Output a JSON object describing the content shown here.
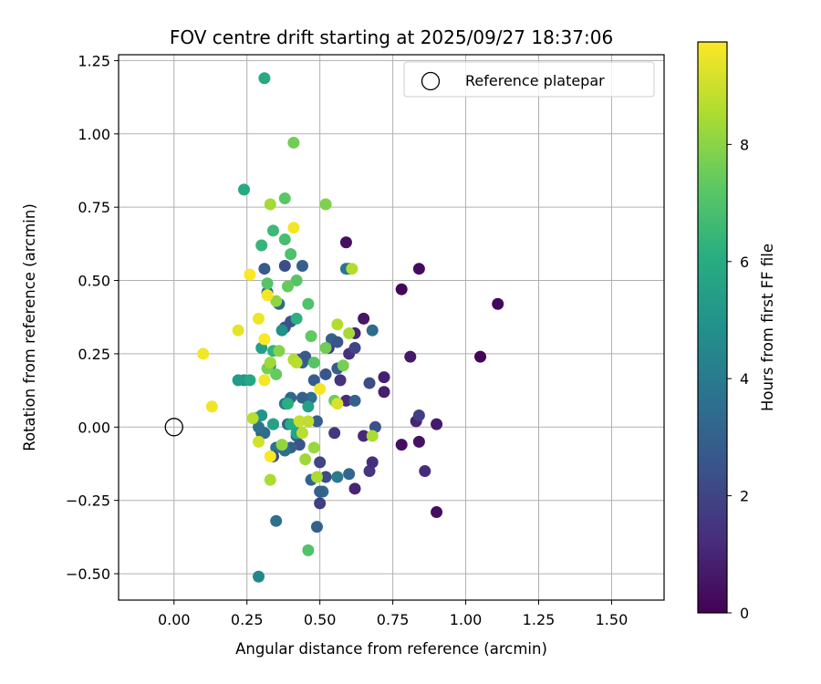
{
  "chart_data": {
    "type": "scatter",
    "title": "FOV centre drift starting at 2025/09/27 18:37:06",
    "xlabel": "Angular distance from reference (arcmin)",
    "ylabel": "Rotation from reference (arcmin)",
    "xlim": [
      -0.19,
      1.68
    ],
    "ylim": [
      -0.59,
      1.27
    ],
    "xticks": [
      0.0,
      0.25,
      0.5,
      0.75,
      1.0,
      1.25,
      1.5
    ],
    "xtick_labels": [
      "0.00",
      "0.25",
      "0.50",
      "0.75",
      "1.00",
      "1.25",
      "1.50"
    ],
    "yticks": [
      -0.5,
      -0.25,
      0.0,
      0.25,
      0.5,
      0.75,
      1.0,
      1.25
    ],
    "ytick_labels": [
      "−0.50",
      "−0.25",
      "0.00",
      "0.25",
      "0.50",
      "0.75",
      "1.00",
      "1.25"
    ],
    "grid": true,
    "legend": {
      "label": "Reference platepar",
      "position": "top-right"
    },
    "reference_point": {
      "x": 0.0,
      "y": 0.0
    },
    "colorbar": {
      "label": "Hours from first FF file",
      "colormap": "viridis",
      "range": [
        0,
        9.75
      ],
      "ticks": [
        0,
        2,
        4,
        6,
        8
      ],
      "tick_labels": [
        "0",
        "2",
        "4",
        "6",
        "8"
      ]
    },
    "series": [
      {
        "name": "FOV centre drift",
        "points": [
          [
            0.59,
            0.63,
            0.4
          ],
          [
            0.84,
            0.54,
            0.3
          ],
          [
            1.11,
            0.42,
            0.2
          ],
          [
            0.78,
            0.47,
            0.2
          ],
          [
            1.05,
            0.24,
            0.1
          ],
          [
            0.65,
            0.37,
            0.6
          ],
          [
            0.81,
            0.24,
            0.7
          ],
          [
            0.72,
            0.17,
            0.9
          ],
          [
            0.72,
            0.12,
            0.8
          ],
          [
            0.78,
            -0.06,
            0.4
          ],
          [
            0.84,
            -0.05,
            0.5
          ],
          [
            0.9,
            0.01,
            0.7
          ],
          [
            0.9,
            -0.29,
            0.4
          ],
          [
            0.86,
            -0.15,
            1.2
          ],
          [
            0.83,
            0.02,
            1.0
          ],
          [
            0.84,
            0.04,
            1.8
          ],
          [
            0.62,
            -0.21,
            1.0
          ],
          [
            0.67,
            -0.15,
            1.5
          ],
          [
            0.68,
            -0.12,
            1.3
          ],
          [
            0.65,
            -0.03,
            1.1
          ],
          [
            0.59,
            0.09,
            1.2
          ],
          [
            0.6,
            0.25,
            1.3
          ],
          [
            0.62,
            0.32,
            1.0
          ],
          [
            0.57,
            0.16,
            1.4
          ],
          [
            0.55,
            -0.02,
            1.5
          ],
          [
            0.53,
            0.27,
            1.6
          ],
          [
            0.67,
            0.15,
            2.2
          ],
          [
            0.69,
            0.0,
            2.4
          ],
          [
            0.62,
            0.27,
            2.0
          ],
          [
            0.56,
            0.2,
            2.8
          ],
          [
            0.5,
            -0.26,
            1.8
          ],
          [
            0.5,
            -0.12,
            2.0
          ],
          [
            0.49,
            -0.34,
            3.0
          ],
          [
            0.51,
            -0.22,
            3.5
          ],
          [
            0.52,
            -0.17,
            2.2
          ],
          [
            0.6,
            -0.16,
            3.2
          ],
          [
            0.56,
            -0.17,
            4.0
          ],
          [
            0.5,
            -0.22,
            3.0
          ],
          [
            0.47,
            -0.18,
            3.1
          ],
          [
            0.49,
            0.02,
            2.9
          ],
          [
            0.48,
            0.16,
            2.8
          ],
          [
            0.52,
            0.18,
            2.6
          ],
          [
            0.54,
            0.3,
            3.0
          ],
          [
            0.6,
            0.54,
            3.3
          ],
          [
            0.59,
            0.54,
            3.7
          ],
          [
            0.62,
            0.09,
            3.1
          ],
          [
            0.68,
            0.33,
            3.4
          ],
          [
            0.56,
            0.29,
            2.5
          ],
          [
            0.38,
            0.55,
            2.3
          ],
          [
            0.44,
            0.55,
            3.0
          ],
          [
            0.31,
            0.54,
            2.8
          ],
          [
            0.36,
            0.42,
            3.3
          ],
          [
            0.4,
            0.36,
            2.5
          ],
          [
            0.38,
            0.34,
            2.4
          ],
          [
            0.32,
            0.46,
            3.3
          ],
          [
            0.43,
            0.23,
            2.5
          ],
          [
            0.44,
            0.22,
            3.0
          ],
          [
            0.45,
            0.24,
            2.7
          ],
          [
            0.47,
            0.1,
            3.5
          ],
          [
            0.44,
            0.1,
            3.0
          ],
          [
            0.4,
            0.1,
            3.2
          ],
          [
            0.38,
            0.08,
            3.8
          ],
          [
            0.39,
            0.01,
            3.0
          ],
          [
            0.42,
            -0.03,
            3.2
          ],
          [
            0.43,
            -0.06,
            2.5
          ],
          [
            0.4,
            -0.07,
            3.0
          ],
          [
            0.38,
            -0.08,
            3.5
          ],
          [
            0.35,
            -0.07,
            3.7
          ],
          [
            0.35,
            -0.32,
            3.6
          ],
          [
            0.3,
            -0.02,
            3.0
          ],
          [
            0.31,
            -0.02,
            3.4
          ],
          [
            0.29,
            0.0,
            3.6
          ],
          [
            0.28,
            0.03,
            4.0
          ],
          [
            0.34,
            -0.1,
            2.3
          ],
          [
            0.34,
            0.01,
            4.0
          ],
          [
            0.33,
            0.21,
            4.3
          ],
          [
            0.37,
            0.33,
            4.8
          ],
          [
            0.29,
            -0.51,
            4.5
          ],
          [
            0.24,
            0.16,
            5.0
          ],
          [
            0.22,
            0.16,
            5.3
          ],
          [
            0.34,
            0.01,
            5.6
          ],
          [
            0.3,
            0.04,
            5.0
          ],
          [
            0.3,
            0.27,
            5.5
          ],
          [
            0.26,
            0.16,
            5.8
          ],
          [
            0.46,
            0.07,
            5.5
          ],
          [
            0.42,
            -0.02,
            5.7
          ],
          [
            0.4,
            0.01,
            6.0
          ],
          [
            0.39,
            0.08,
            6.1
          ],
          [
            0.42,
            0.37,
            6.2
          ],
          [
            0.34,
            0.26,
            6.3
          ],
          [
            0.24,
            0.81,
            5.9
          ],
          [
            0.3,
            0.62,
            6.4
          ],
          [
            0.34,
            0.67,
            6.6
          ],
          [
            0.38,
            0.64,
            6.8
          ],
          [
            0.4,
            0.59,
            6.9
          ],
          [
            0.42,
            0.5,
            7.1
          ],
          [
            0.46,
            0.42,
            7.0
          ],
          [
            0.47,
            0.31,
            7.3
          ],
          [
            0.48,
            0.22,
            7.1
          ],
          [
            0.52,
            0.27,
            7.6
          ],
          [
            0.58,
            0.21,
            7.7
          ],
          [
            0.55,
            0.09,
            7.5
          ],
          [
            0.31,
            1.19,
            5.9
          ],
          [
            0.41,
            0.97,
            7.6
          ],
          [
            0.38,
            0.78,
            7.2
          ],
          [
            0.52,
            0.76,
            7.8
          ],
          [
            0.33,
            0.76,
            8.4
          ],
          [
            0.35,
            0.43,
            8.1
          ],
          [
            0.36,
            0.26,
            7.9
          ],
          [
            0.32,
            0.49,
            7.1
          ],
          [
            0.39,
            0.48,
            7.4
          ],
          [
            0.35,
            0.18,
            7.4
          ],
          [
            0.32,
            0.2,
            7.7
          ],
          [
            0.33,
            0.22,
            8.3
          ],
          [
            0.45,
            -0.11,
            8.3
          ],
          [
            0.46,
            -0.42,
            7.0
          ],
          [
            0.48,
            -0.07,
            8.2
          ],
          [
            0.49,
            -0.17,
            8.5
          ],
          [
            0.41,
            0.23,
            8.6
          ],
          [
            0.42,
            0.22,
            8.7
          ],
          [
            0.37,
            -0.06,
            8.1
          ],
          [
            0.33,
            -0.18,
            8.5
          ],
          [
            0.43,
            0.02,
            8.9
          ],
          [
            0.44,
            -0.02,
            8.7
          ],
          [
            0.46,
            0.02,
            8.8
          ],
          [
            0.5,
            0.13,
            9.6
          ],
          [
            0.56,
            0.08,
            9.2
          ],
          [
            0.56,
            0.35,
            8.6
          ],
          [
            0.6,
            0.32,
            8.4
          ],
          [
            0.61,
            0.54,
            8.6
          ],
          [
            0.68,
            -0.03,
            8.5
          ],
          [
            0.26,
            0.52,
            9.7
          ],
          [
            0.41,
            0.68,
            9.6
          ],
          [
            0.29,
            0.37,
            9.5
          ],
          [
            0.22,
            0.33,
            9.4
          ],
          [
            0.1,
            0.25,
            9.6
          ],
          [
            0.13,
            0.07,
            9.5
          ],
          [
            0.31,
            0.3,
            9.7
          ],
          [
            0.32,
            0.45,
            9.6
          ],
          [
            0.31,
            0.16,
            9.6
          ],
          [
            0.33,
            -0.1,
            9.7
          ],
          [
            0.27,
            0.03,
            8.7
          ],
          [
            0.29,
            -0.05,
            9.1
          ]
        ]
      }
    ]
  }
}
